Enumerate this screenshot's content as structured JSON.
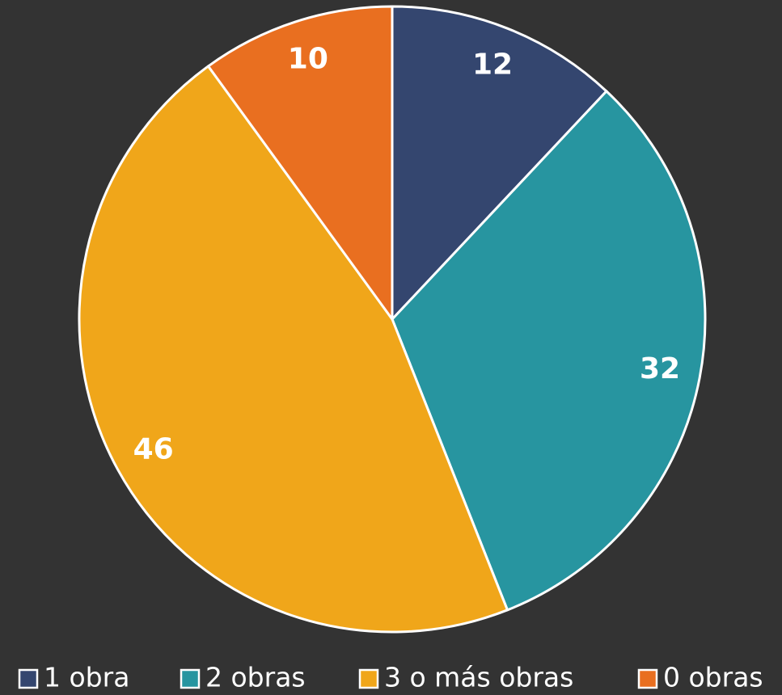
{
  "chart_data": {
    "type": "pie",
    "categories": [
      "1 obra",
      "2 obras",
      "3 o más obras",
      "0 obras"
    ],
    "values": [
      12,
      32,
      46,
      10
    ],
    "colors": [
      "#34466f",
      "#2795a0",
      "#f0a61a",
      "#e96f20"
    ],
    "legend": "bottom"
  }
}
